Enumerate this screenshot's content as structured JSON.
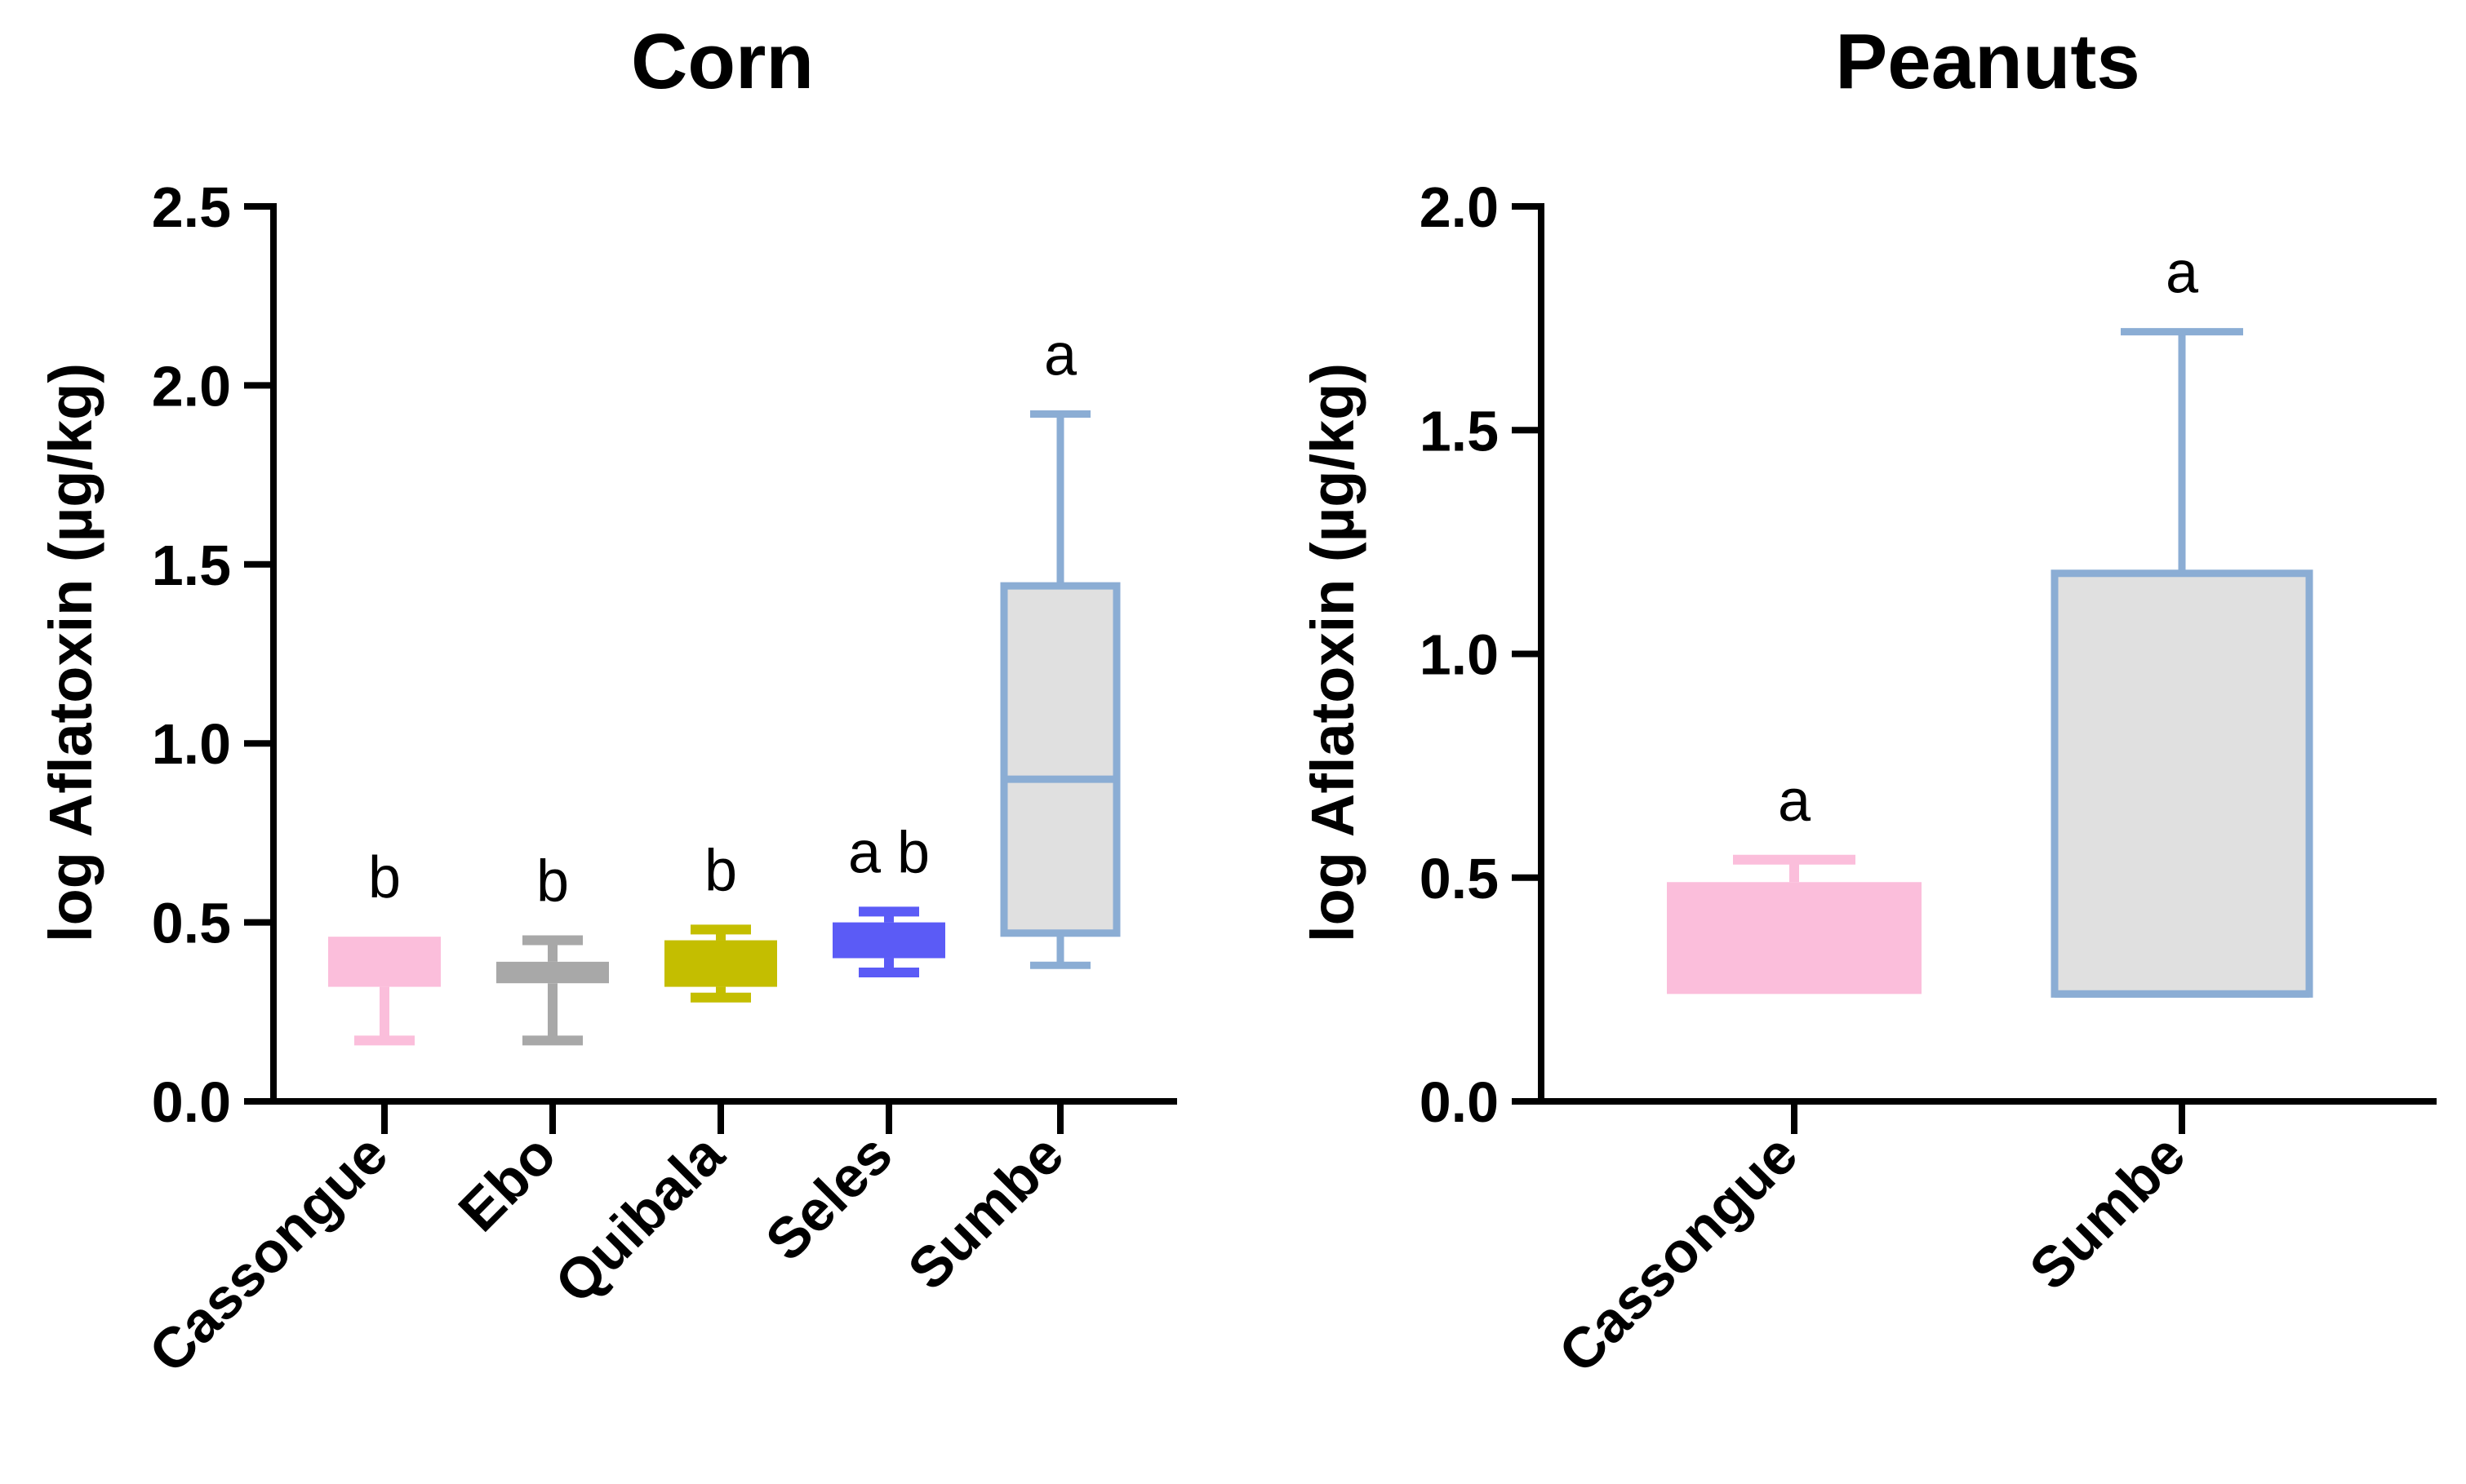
{
  "chart_data": [
    {
      "type": "box",
      "title": "Corn",
      "xlabel": "",
      "ylabel": "log Aflatoxin (µg/kg)",
      "ylim": [
        0,
        2.5
      ],
      "yticks": [
        "0.0",
        "0.5",
        "1.0",
        "1.5",
        "2.0",
        "2.5"
      ],
      "ytick_values": [
        0,
        0.5,
        1.0,
        1.5,
        2.0,
        2.5
      ],
      "categories": [
        "Cassongue",
        "Ebo",
        "Quibala",
        "Seles",
        "Sumbe"
      ],
      "boxes": [
        {
          "name": "Cassongue",
          "min": 0.17,
          "q1": 0.32,
          "median": 0.46,
          "q3": 0.46,
          "max": 0.46,
          "letter": "b",
          "color": "#fbbedb",
          "style": "filled"
        },
        {
          "name": "Ebo",
          "min": 0.17,
          "q1": 0.33,
          "median": 0.33,
          "q3": 0.39,
          "max": 0.45,
          "letter": "b",
          "color": "#a8a8a8",
          "style": "filled"
        },
        {
          "name": "Quibala",
          "min": 0.29,
          "q1": 0.32,
          "median": 0.32,
          "q3": 0.45,
          "max": 0.48,
          "letter": "b",
          "color": "#c4be00",
          "style": "filled"
        },
        {
          "name": "Seles",
          "min": 0.36,
          "q1": 0.4,
          "median": 0.4,
          "q3": 0.5,
          "max": 0.53,
          "letter": "a b",
          "color": "#5b5bf6",
          "style": "filled"
        },
        {
          "name": "Sumbe",
          "min": 0.38,
          "q1": 0.47,
          "median": 0.9,
          "q3": 1.44,
          "max": 1.92,
          "letter": "a",
          "color": "#8badd4",
          "style": "outline",
          "fill": "#e0e0e0"
        }
      ]
    },
    {
      "type": "box",
      "title": "Peanuts",
      "xlabel": "",
      "ylabel": "log Aflatoxin (µg/kg)",
      "ylim": [
        0,
        2.0
      ],
      "yticks": [
        "0.0",
        "0.5",
        "1.0",
        "1.5",
        "2.0"
      ],
      "ytick_values": [
        0,
        0.5,
        1.0,
        1.5,
        2.0
      ],
      "categories": [
        "Cassongue",
        "Sumbe"
      ],
      "boxes": [
        {
          "name": "Cassongue",
          "min": 0.24,
          "q1": 0.24,
          "median": 0.49,
          "q3": 0.49,
          "max": 0.54,
          "letter": "a",
          "color": "#fbbedb",
          "style": "filled"
        },
        {
          "name": "Sumbe",
          "min": 0.24,
          "q1": 0.24,
          "median": 0.24,
          "q3": 1.18,
          "max": 1.72,
          "letter": "a",
          "color": "#8badd4",
          "style": "outline",
          "fill": "#e0e0e0"
        }
      ]
    }
  ]
}
